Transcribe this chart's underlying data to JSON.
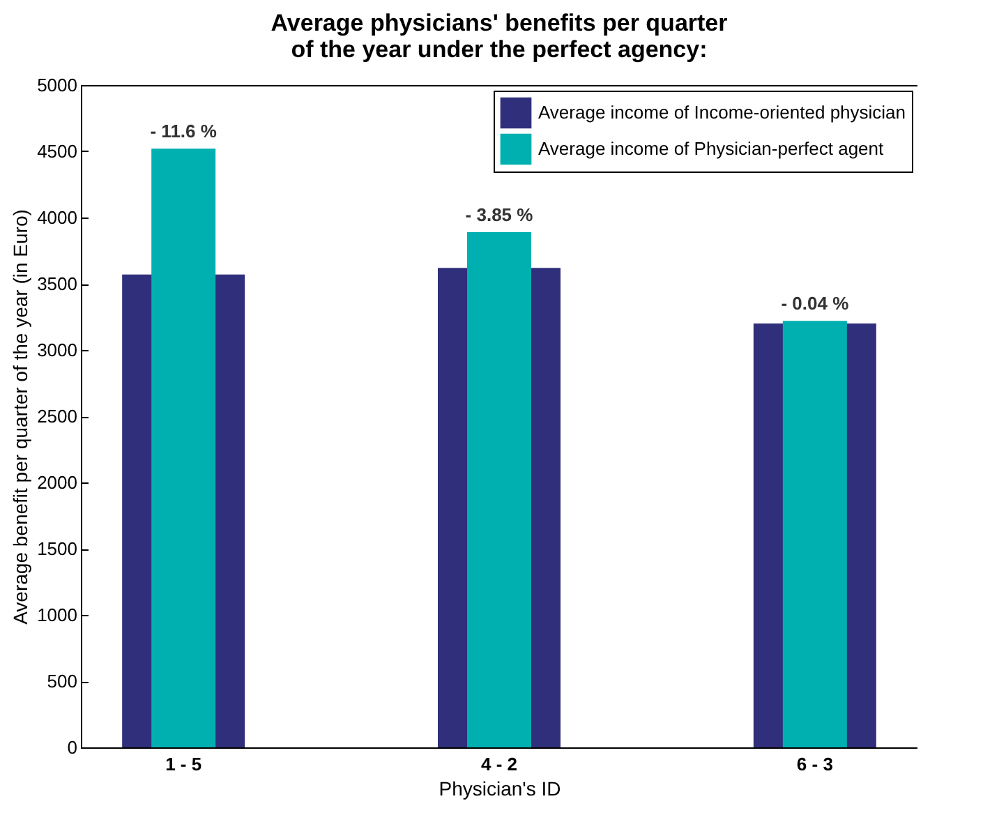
{
  "chart_data": {
    "type": "bar",
    "title": "Average physicians' benefits per quarter of the year under the perfect agency:",
    "xlabel": "Physician's ID",
    "ylabel": "Average benefit per quarter of the year (in Euro)",
    "categories": [
      "1 - 5",
      "4 - 2",
      "6 - 3"
    ],
    "series": [
      {
        "name": "Average income of Income-oriented physician",
        "color": "#2f2f7b",
        "values": [
          3570,
          3620,
          3200
        ]
      },
      {
        "name": "Average income of Physician-perfect agent",
        "color": "#00b0b0",
        "values": [
          4520,
          3890,
          3220
        ]
      }
    ],
    "ylim": [
      0,
      5000
    ],
    "yticks": [
      0,
      500,
      1000,
      1500,
      2000,
      2500,
      3000,
      3500,
      4000,
      4500,
      5000
    ],
    "annotations": [
      {
        "text": "- 11.6 %",
        "x": "1 - 5",
        "y": 4520
      },
      {
        "text": "- 3.85 %",
        "x": "4 - 2",
        "y": 3890
      },
      {
        "text": "- 0.04 %",
        "x": "6 - 3",
        "y": 3220
      }
    ],
    "legend": "top right",
    "grid": false
  }
}
